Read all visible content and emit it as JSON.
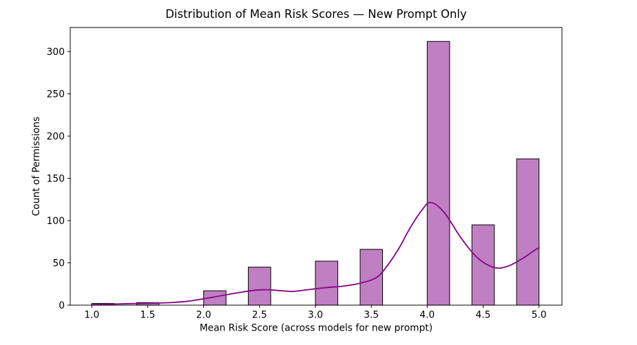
{
  "chart_data": {
    "type": "histogram",
    "title": "Distribution of Mean Risk Scores — New Prompt Only",
    "xlabel": "Mean Risk Score (across models for new prompt)",
    "ylabel": "Count of Permissions",
    "legend": null,
    "grid": false,
    "x_ticks": [
      1.0,
      1.5,
      2.0,
      2.5,
      3.0,
      3.5,
      4.0,
      4.5,
      5.0
    ],
    "y_ticks": [
      0,
      50,
      100,
      150,
      200,
      250,
      300
    ],
    "xlim": [
      0.807,
      5.205
    ],
    "ylim": [
      0,
      328.5
    ],
    "bin_width": 0.2,
    "bars": [
      {
        "x0": 1.0,
        "x1": 1.2,
        "center": 1.1,
        "count": 2
      },
      {
        "x0": 1.4,
        "x1": 1.6,
        "center": 1.5,
        "count": 3
      },
      {
        "x0": 2.0,
        "x1": 2.2,
        "center": 2.1,
        "count": 17
      },
      {
        "x0": 2.4,
        "x1": 2.6,
        "center": 2.5,
        "count": 45
      },
      {
        "x0": 3.0,
        "x1": 3.2,
        "center": 3.1,
        "count": 52
      },
      {
        "x0": 3.4,
        "x1": 3.6,
        "center": 3.5,
        "count": 66
      },
      {
        "x0": 4.0,
        "x1": 4.2,
        "center": 4.1,
        "count": 312
      },
      {
        "x0": 4.4,
        "x1": 4.6,
        "center": 4.5,
        "count": 95
      },
      {
        "x0": 4.8,
        "x1": 5.0,
        "center": 4.9,
        "count": 173
      }
    ],
    "kde_points": [
      [
        1.0,
        0.5
      ],
      [
        1.15,
        1.1
      ],
      [
        1.3,
        1.6
      ],
      [
        1.5,
        2.2
      ],
      [
        1.7,
        3.0
      ],
      [
        1.85,
        4.5
      ],
      [
        2.0,
        7.5
      ],
      [
        2.15,
        11
      ],
      [
        2.3,
        14.5
      ],
      [
        2.45,
        17.5
      ],
      [
        2.57,
        18.2
      ],
      [
        2.7,
        17.0
      ],
      [
        2.8,
        16.2
      ],
      [
        2.95,
        18.5
      ],
      [
        3.1,
        20.8
      ],
      [
        3.25,
        22.5
      ],
      [
        3.4,
        26
      ],
      [
        3.55,
        33
      ],
      [
        3.65,
        48
      ],
      [
        3.75,
        68
      ],
      [
        3.85,
        92
      ],
      [
        3.95,
        112
      ],
      [
        4.03,
        121.5
      ],
      [
        4.15,
        110
      ],
      [
        4.3,
        80
      ],
      [
        4.45,
        56
      ],
      [
        4.6,
        44.5
      ],
      [
        4.72,
        46
      ],
      [
        4.85,
        55
      ],
      [
        4.95,
        64
      ],
      [
        5.0,
        68
      ]
    ],
    "colors": {
      "bar_fill": "#c17fc3",
      "bar_edge": "#111111",
      "kde_line": "#860b88",
      "axis": "#000000",
      "background": "#ffffff"
    }
  }
}
